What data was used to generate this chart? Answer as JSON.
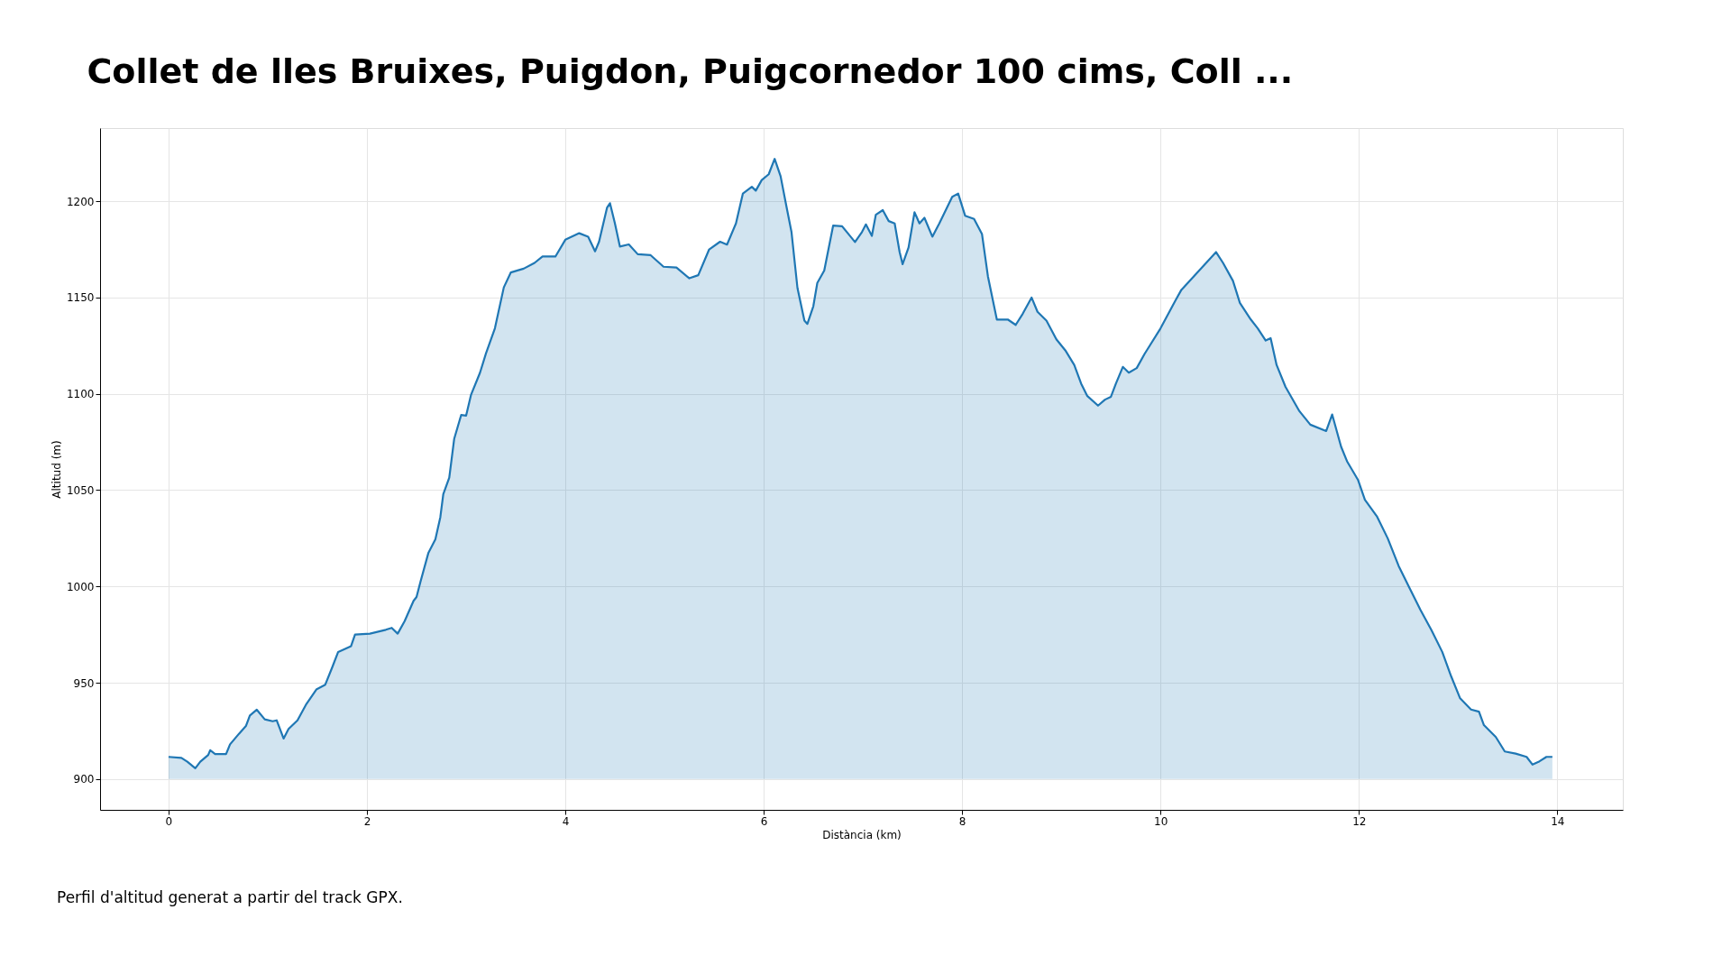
{
  "chart_data": {
    "type": "area",
    "title": "Collet de lles Bruixes, Puigdon, Puigcornedor 100 cims, Coll ...",
    "xlabel": "Distància (km)",
    "ylabel": "Altitud (m)",
    "x": [
      0,
      0.13,
      0.19,
      0.27,
      0.32,
      0.4,
      0.42,
      0.47,
      0.58,
      0.62,
      0.71,
      0.78,
      0.82,
      0.89,
      0.97,
      1.05,
      1.09,
      1.16,
      1.21,
      1.3,
      1.39,
      1.49,
      1.58,
      1.65,
      1.71,
      1.84,
      1.88,
      2.03,
      2.19,
      2.25,
      2.31,
      2.38,
      2.47,
      2.5,
      2.54,
      2.62,
      2.69,
      2.74,
      2.77,
      2.83,
      2.88,
      2.95,
      3.0,
      3.05,
      3.14,
      3.2,
      3.29,
      3.38,
      3.45,
      3.58,
      3.69,
      3.77,
      3.9,
      4.0,
      4.14,
      4.23,
      4.3,
      4.34,
      4.42,
      4.45,
      4.5,
      4.55,
      4.64,
      4.73,
      4.86,
      4.99,
      5.12,
      5.25,
      5.34,
      5.45,
      5.56,
      5.63,
      5.72,
      5.79,
      5.88,
      5.92,
      5.98,
      6.05,
      6.11,
      6.17,
      6.23,
      6.28,
      6.34,
      6.41,
      6.44,
      6.5,
      6.54,
      6.61,
      6.7,
      6.79,
      6.87,
      6.92,
      6.99,
      7.03,
      7.09,
      7.13,
      7.2,
      7.26,
      7.32,
      7.37,
      7.4,
      7.46,
      7.52,
      7.57,
      7.62,
      7.7,
      7.77,
      7.9,
      7.96,
      8.03,
      8.12,
      8.2,
      8.26,
      8.35,
      8.46,
      8.54,
      8.61,
      8.7,
      8.76,
      8.85,
      8.95,
      9.04,
      9.13,
      9.2,
      9.26,
      9.37,
      9.44,
      9.5,
      9.55,
      9.62,
      9.68,
      9.76,
      9.84,
      10.0,
      10.15,
      10.21,
      10.56,
      10.63,
      10.73,
      10.8,
      10.91,
      10.98,
      11.06,
      11.11,
      11.17,
      11.26,
      11.4,
      11.51,
      11.67,
      11.73,
      11.82,
      11.88,
      11.99,
      12.06,
      12.18,
      12.29,
      12.4,
      12.51,
      12.62,
      12.73,
      12.84,
      12.93,
      13.02,
      13.13,
      13.21,
      13.26,
      13.38,
      13.47,
      13.58,
      13.69,
      13.75,
      13.82,
      13.89,
      13.95
    ],
    "series": [
      {
        "color": "#1f77b4",
        "values": [
          911.5,
          911,
          909,
          905.6,
          909,
          912.5,
          915,
          913,
          913,
          918,
          923.5,
          927.5,
          933,
          936,
          931,
          930,
          930.5,
          921,
          926,
          930.5,
          939,
          946.5,
          949,
          958,
          966,
          969,
          975,
          975.5,
          977.5,
          978.5,
          975.5,
          982,
          992.5,
          994.5,
          1002.5,
          1017.5,
          1024.5,
          1036,
          1048,
          1056.5,
          1076.7,
          1089,
          1088.7,
          1099.6,
          1111,
          1121,
          1134,
          1155.3,
          1163,
          1165,
          1168,
          1171.3,
          1171.3,
          1180,
          1183.4,
          1181.6,
          1174,
          1179,
          1196.6,
          1199,
          1188.5,
          1176.5,
          1177.6,
          1172.5,
          1172,
          1166,
          1165.6,
          1160,
          1161.6,
          1175,
          1179,
          1177.5,
          1188.5,
          1204,
          1207.5,
          1205.5,
          1211,
          1214,
          1222,
          1213,
          1197,
          1184,
          1155,
          1138,
          1136.3,
          1145.5,
          1157.6,
          1164,
          1187.4,
          1187,
          1182,
          1178.8,
          1184,
          1188,
          1182,
          1193,
          1195.4,
          1189.7,
          1188.5,
          1173.6,
          1167.3,
          1176,
          1194.3,
          1188.5,
          1191.4,
          1181.6,
          1188.5,
          1202.3,
          1204,
          1192.5,
          1190.8,
          1183,
          1161,
          1138.6,
          1138.6,
          1135.8,
          1141.5,
          1150,
          1142.6,
          1138,
          1128.3,
          1122.6,
          1115,
          1105.3,
          1099,
          1093.9,
          1097,
          1098.5,
          1105.3,
          1114,
          1111,
          1113.4,
          1120.8,
          1134,
          1148.4,
          1154,
          1173.6,
          1168,
          1158.7,
          1147.2,
          1138.6,
          1134,
          1127.7,
          1128.9,
          1115,
          1103.6,
          1091,
          1084,
          1080.7,
          1089.3,
          1072.6,
          1065,
          1055.4,
          1045,
          1036.5,
          1025,
          1010.7,
          999.2,
          987.8,
          977.4,
          966,
          953.3,
          941.9,
          936.1,
          935,
          928,
          921.8,
          914.3,
          913.2,
          911.5,
          907.5,
          909.2,
          911.5,
          911.5
        ]
      }
    ],
    "xlim": [
      -0.69,
      14.66
    ],
    "ylim": [
      884,
      1238
    ],
    "xticks": [
      0,
      2,
      4,
      6,
      8,
      10,
      12,
      14
    ],
    "yticks": [
      900,
      950,
      1000,
      1050,
      1100,
      1150,
      1200
    ],
    "grid": true,
    "annotations": [
      "Perfil d'altitud generat a partir del track GPX."
    ]
  }
}
